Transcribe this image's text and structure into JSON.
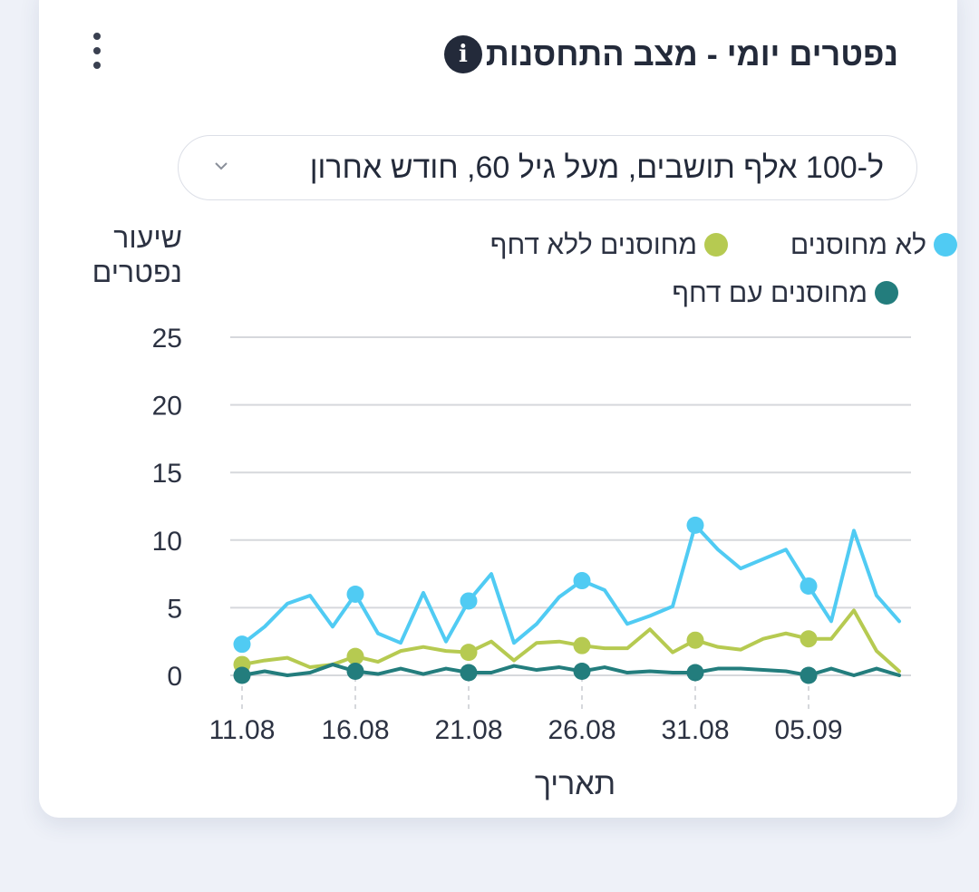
{
  "card": {
    "title": "נפטרים יומי - מצב התחסנות",
    "info_icon": "info-icon",
    "menu_icon": "vertical-dots-icon"
  },
  "filter": {
    "selected": "ל-100 אלף תושבים, מעל גיל 60, חודש אחרון",
    "icon": "chevron-down-icon"
  },
  "colors": {
    "unvaccinated": "#50cbf3",
    "vaccinated_no_booster": "#b6ca51",
    "vaccinated_booster": "#237d7d",
    "grid": "#d6d8dc",
    "axis_text": "#2c3242"
  },
  "chart_data": {
    "type": "line",
    "ylabel": "שיעור נפטרים",
    "xlabel": "תאריך",
    "ylim": [
      0,
      25
    ],
    "yticks": [
      "0",
      "5",
      "10",
      "15",
      "20",
      "25"
    ],
    "x_tick_labels": [
      "11.08",
      "16.08",
      "21.08",
      "26.08",
      "31.08",
      "05.09"
    ],
    "x": [
      "11.08",
      "12.08",
      "13.08",
      "14.08",
      "15.08",
      "16.08",
      "17.08",
      "18.08",
      "19.08",
      "20.08",
      "21.08",
      "22.08",
      "23.08",
      "24.08",
      "25.08",
      "26.08",
      "27.08",
      "28.08",
      "29.08",
      "30.08",
      "31.08",
      "01.09",
      "02.09",
      "03.09",
      "04.09",
      "05.09",
      "06.09",
      "07.09",
      "08.09",
      "09.09"
    ],
    "legend": [
      {
        "name": "לא מחוסנים",
        "key": "unvaccinated"
      },
      {
        "name": "מחוסנים ללא דחף",
        "key": "vaccinated_no_booster"
      },
      {
        "name": "מחוסנים עם דחף",
        "key": "vaccinated_booster"
      }
    ],
    "series": [
      {
        "name": "לא מחוסנים",
        "key": "unvaccinated",
        "values": [
          2.3,
          3.6,
          5.3,
          5.9,
          3.6,
          6.0,
          3.1,
          2.4,
          6.1,
          2.5,
          5.5,
          7.5,
          2.4,
          3.8,
          5.8,
          7.0,
          6.3,
          3.8,
          4.4,
          5.1,
          11.1,
          9.3,
          7.9,
          8.6,
          9.3,
          6.6,
          4.0,
          10.7,
          5.9,
          4.0
        ],
        "markers_every": 5
      },
      {
        "name": "מחוסנים ללא דחף",
        "key": "vaccinated_no_booster",
        "values": [
          0.8,
          1.1,
          1.3,
          0.6,
          0.8,
          1.4,
          1.0,
          1.8,
          2.1,
          1.8,
          1.7,
          2.5,
          1.1,
          2.4,
          2.5,
          2.2,
          2.0,
          2.0,
          3.4,
          1.7,
          2.6,
          2.1,
          1.9,
          2.7,
          3.1,
          2.7,
          2.7,
          4.8,
          1.8,
          0.3
        ],
        "markers_every": 5
      },
      {
        "name": "מחוסנים עם דחף",
        "key": "vaccinated_booster",
        "values": [
          0.0,
          0.3,
          0.0,
          0.2,
          0.8,
          0.3,
          0.1,
          0.5,
          0.1,
          0.5,
          0.2,
          0.2,
          0.7,
          0.4,
          0.6,
          0.3,
          0.6,
          0.2,
          0.3,
          0.2,
          0.2,
          0.5,
          0.5,
          0.4,
          0.3,
          0.0,
          0.5,
          0.0,
          0.5,
          0.0
        ],
        "markers_every": 5
      }
    ],
    "grid": true,
    "legend_position": "top"
  }
}
